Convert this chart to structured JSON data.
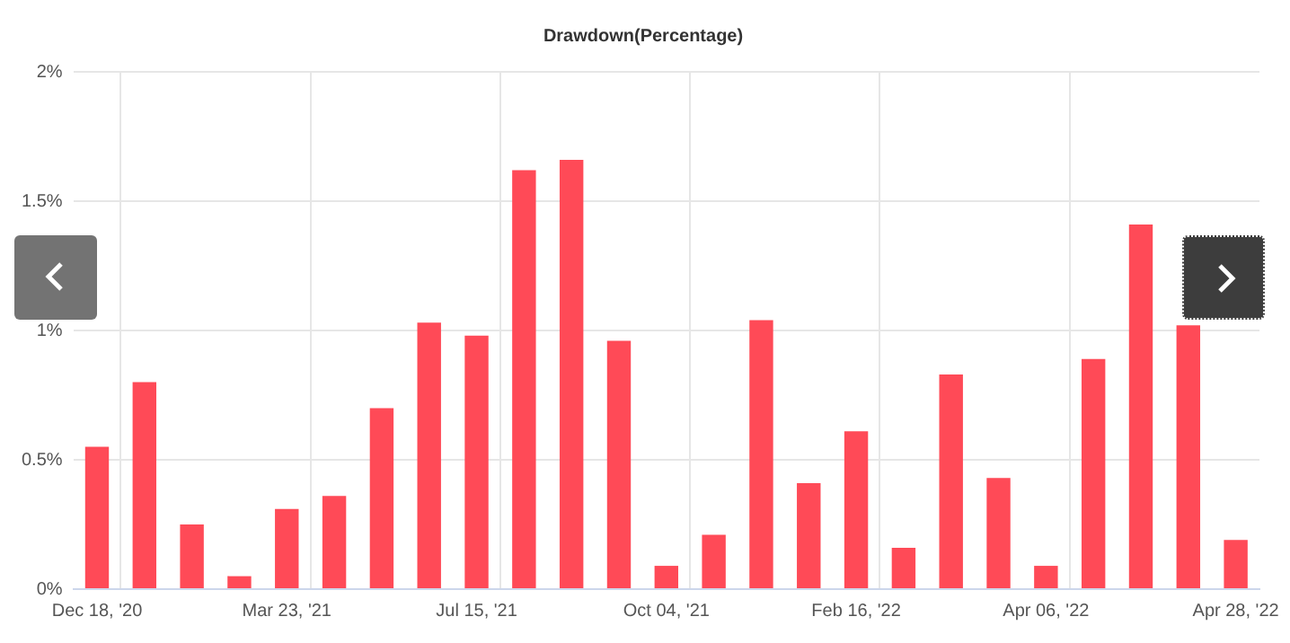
{
  "chart_data": {
    "type": "bar",
    "title": "Drawdown(Percentage)",
    "categories": [
      "Dec 18, '20",
      null,
      null,
      null,
      "Mar 23, '21",
      null,
      null,
      null,
      "Jul 15, '21",
      null,
      null,
      null,
      "Oct 04, '21",
      null,
      null,
      null,
      "Feb 16, '22",
      null,
      null,
      null,
      "Apr 06, '22",
      null,
      null,
      null,
      "Apr 28, '22"
    ],
    "values": [
      0.55,
      0.8,
      0.25,
      0.05,
      0.31,
      0.36,
      0.7,
      1.03,
      0.98,
      1.62,
      1.66,
      0.96,
      0.09,
      0.21,
      1.04,
      0.41,
      0.61,
      0.16,
      0.83,
      0.43,
      0.09,
      0.89,
      1.41,
      1.02,
      0.19
    ],
    "color": "#ff4a57",
    "ylim": [
      0,
      2
    ],
    "yticks": [
      {
        "value": 0,
        "label": "0%"
      },
      {
        "value": 0.5,
        "label": "0.5%"
      },
      {
        "value": 1,
        "label": "1%"
      },
      {
        "value": 1.5,
        "label": "1.5%"
      },
      {
        "value": 2,
        "label": "2%"
      }
    ],
    "grid": true,
    "legend": false
  }
}
